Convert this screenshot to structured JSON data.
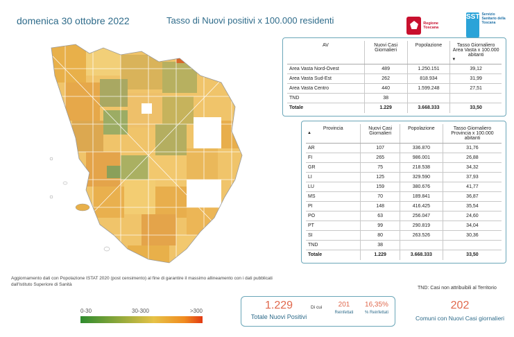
{
  "header": {
    "date": "domenica 30 ottobre 2022",
    "title": "Tasso di Nuovi positivi x 100.000 residenti",
    "logo_rt": "Regione Toscana",
    "logo_sst_mark": "SST",
    "logo_sst_text": "Servizio Sanitario della Toscana"
  },
  "colors": {
    "accent": "#2e6b8a",
    "kpi": "#e0684c",
    "border": "#6aa6b8",
    "low": "#2e8b2e",
    "mid": "#e6c247",
    "high": "#e23a12"
  },
  "note": "Aggiornamento dati con Popolazione ISTAT 2020 (post censimento) al fine di garantire il massimo allineamento con i dati pubblicati dall'Istituto Superiore di Sanità",
  "legend": {
    "low": "0-30",
    "mid": "30-300",
    "high": ">300"
  },
  "table_av": {
    "headers": [
      "AV",
      "Nuovi Casi Giornalieri",
      "Popolazione",
      "Tasso Giornaliero Area Vasta x 100.000 abitanti"
    ],
    "rows": [
      [
        "Area Vasta Nord-Ovest",
        "489",
        "1.250.151",
        "39,12"
      ],
      [
        "Area Vasta Sud-Est",
        "262",
        "818.934",
        "31,99"
      ],
      [
        "Area Vasta Centro",
        "440",
        "1.599.248",
        "27,51"
      ],
      [
        "TND",
        "38",
        "",
        ""
      ]
    ],
    "total": [
      "Totale",
      "1.229",
      "3.668.333",
      "33,50"
    ]
  },
  "table_prov": {
    "headers": [
      "Provincia",
      "Nuovi Casi Giornalieri",
      "Popolazione",
      "Tasso Giornaliero Provincia x 100.000 abitanti"
    ],
    "rows": [
      [
        "AR",
        "107",
        "336.870",
        "31,76"
      ],
      [
        "FI",
        "265",
        "986.001",
        "26,88"
      ],
      [
        "GR",
        "75",
        "218.538",
        "34,32"
      ],
      [
        "LI",
        "125",
        "329.590",
        "37,93"
      ],
      [
        "LU",
        "159",
        "380.676",
        "41,77"
      ],
      [
        "MS",
        "70",
        "189.841",
        "36,87"
      ],
      [
        "PI",
        "148",
        "416.425",
        "35,54"
      ],
      [
        "PO",
        "63",
        "256.047",
        "24,60"
      ],
      [
        "PT",
        "99",
        "290.819",
        "34,04"
      ],
      [
        "SI",
        "80",
        "263.526",
        "30,36"
      ],
      [
        "TND",
        "38",
        "",
        ""
      ]
    ],
    "total": [
      "Totale",
      "1.229",
      "3.668.333",
      "33,50"
    ]
  },
  "tnd_note": "TND: Casi non attribuibili al Territorio",
  "kpi": {
    "total_value": "1.229",
    "total_label": "Totale Nuovi Positivi",
    "di_cui": "Di cui",
    "reinfected_value": "201",
    "reinfected_label": "Reinfettati",
    "reinfected_pct_value": "16,35%",
    "reinfected_pct_label": "% Reinfettati",
    "comuni_value": "202",
    "comuni_label": "Comuni con Nuovi Casi giornalieri"
  }
}
